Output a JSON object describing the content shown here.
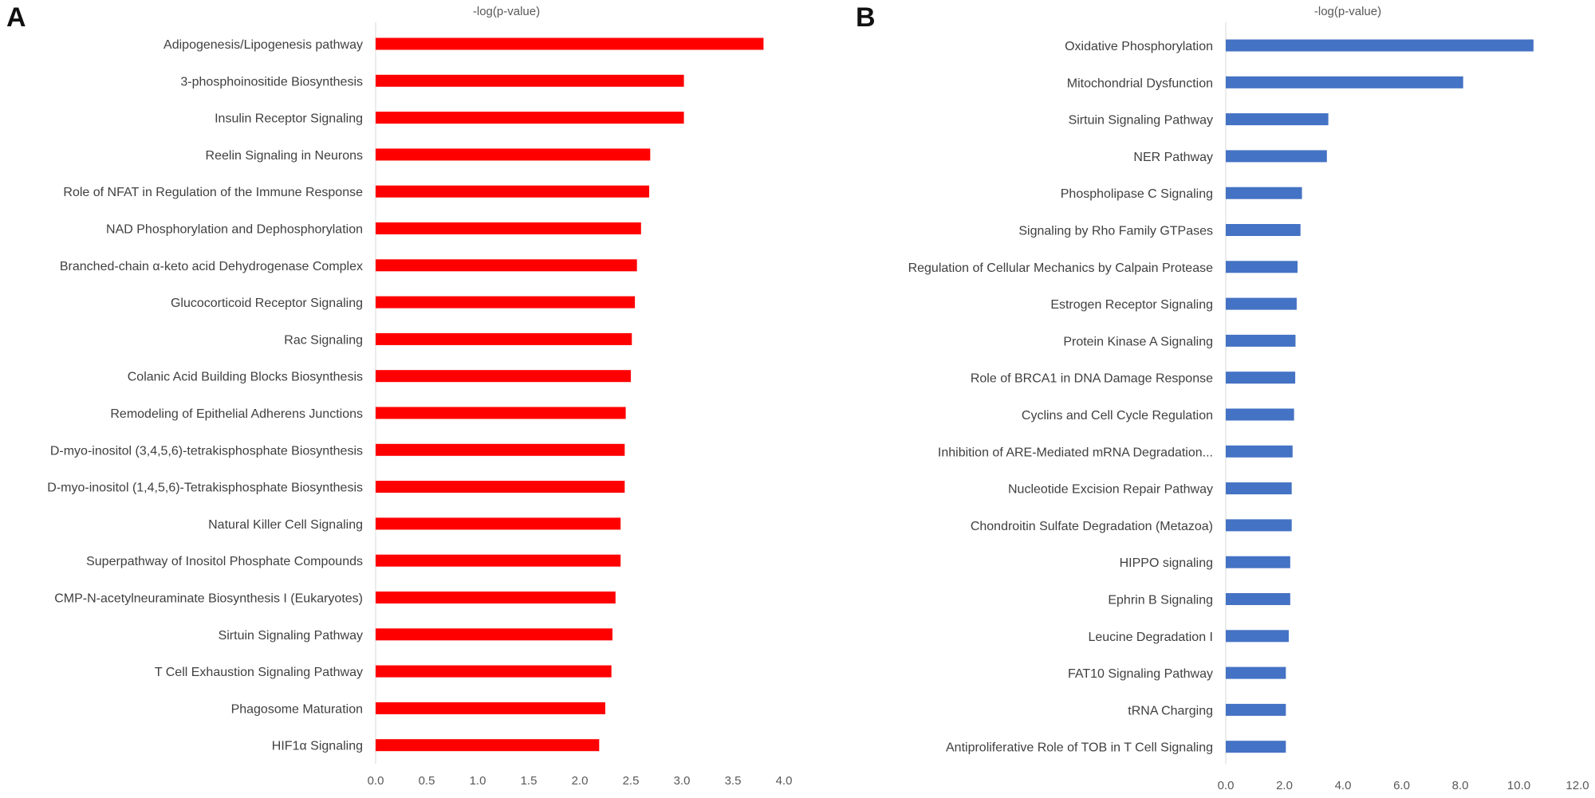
{
  "chart_data": [
    {
      "panel": "A",
      "type": "bar",
      "orientation": "horizontal",
      "xlabel": "-log(p-value)",
      "xlabel_position": "top",
      "color": "#ff0000",
      "xlim": [
        0,
        4.0
      ],
      "xticks": [
        "0.0",
        "0.5",
        "1.0",
        "1.5",
        "2.0",
        "2.5",
        "3.0",
        "3.5",
        "4.0"
      ],
      "grid": false,
      "categories": [
        "Adipogenesis/Lipogenesis pathway",
        "3-phosphoinositide Biosynthesis",
        "Insulin Receptor Signaling",
        "Reelin Signaling in Neurons",
        "Role of NFAT in Regulation of the Immune Response",
        "NAD Phosphorylation and Dephosphorylation",
        "Branched-chain α-keto acid Dehydrogenase Complex",
        "Glucocorticoid Receptor Signaling",
        "Rac Signaling",
        "Colanic Acid Building Blocks Biosynthesis",
        "Remodeling of Epithelial Adherens Junctions",
        "D-myo-inositol (3,4,5,6)-tetrakisphosphate Biosynthesis",
        "D-myo-inositol (1,4,5,6)-Tetrakisphosphate Biosynthesis",
        "Natural Killer Cell Signaling",
        "Superpathway of Inositol Phosphate Compounds",
        "CMP-N-acetylneuraminate Biosynthesis I (Eukaryotes)",
        "Sirtuin Signaling Pathway",
        "T Cell Exhaustion Signaling Pathway",
        "Phagosome Maturation",
        "HIF1α Signaling"
      ],
      "values": [
        3.8,
        3.02,
        3.02,
        2.69,
        2.68,
        2.6,
        2.56,
        2.54,
        2.51,
        2.5,
        2.45,
        2.44,
        2.44,
        2.4,
        2.4,
        2.35,
        2.32,
        2.31,
        2.25,
        2.19
      ]
    },
    {
      "panel": "B",
      "type": "bar",
      "orientation": "horizontal",
      "xlabel": "-log(p-value)",
      "xlabel_position": "top",
      "color": "#4472c4",
      "xlim": [
        0,
        12.0
      ],
      "xticks": [
        "0.0",
        "2.0",
        "4.0",
        "6.0",
        "8.0",
        "10.0",
        "12.0"
      ],
      "grid": false,
      "categories": [
        "Oxidative Phosphorylation",
        "Mitochondrial Dysfunction",
        "Sirtuin Signaling Pathway",
        "NER Pathway",
        "Phospholipase C Signaling",
        "Signaling by Rho Family GTPases",
        "Regulation of Cellular Mechanics by Calpain Protease",
        "Estrogen Receptor Signaling",
        "Protein Kinase A Signaling",
        "Role of BRCA1 in DNA Damage Response",
        "Cyclins and Cell Cycle Regulation",
        "Inhibition of ARE-Mediated mRNA Degradation...",
        "Nucleotide Excision Repair Pathway",
        "Chondroitin Sulfate Degradation (Metazoa)",
        "HIPPO signaling",
        "Ephrin B Signaling",
        "Leucine Degradation I",
        "FAT10 Signaling Pathway",
        "tRNA Charging",
        "Antiproliferative Role of TOB in T Cell Signaling"
      ],
      "values": [
        10.5,
        8.1,
        3.5,
        3.45,
        2.6,
        2.55,
        2.45,
        2.42,
        2.38,
        2.37,
        2.33,
        2.28,
        2.25,
        2.25,
        2.2,
        2.2,
        2.15,
        2.05,
        2.05,
        2.05
      ]
    }
  ]
}
